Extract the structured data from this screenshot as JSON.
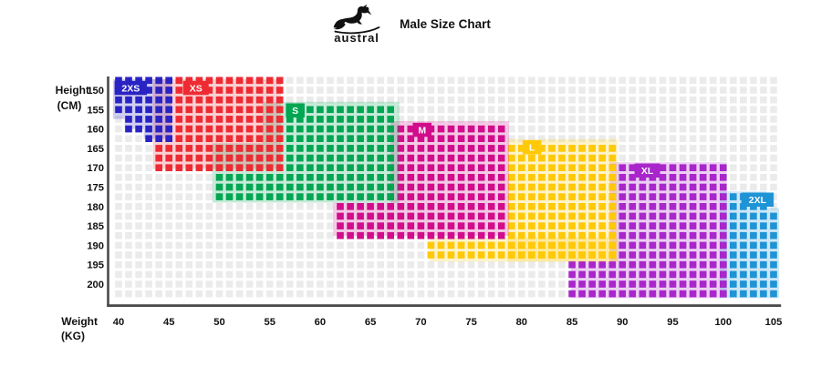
{
  "header": {
    "title": "Male Size Chart",
    "brand": "austral"
  },
  "axis": {
    "y_title": "Height",
    "y_unit": "(CM)",
    "x_title": "Weight",
    "x_unit": "(KG)",
    "y_ticks": [
      150,
      155,
      160,
      165,
      170,
      175,
      180,
      185,
      190,
      195,
      200
    ],
    "x_ticks": [
      40,
      45,
      50,
      55,
      60,
      65,
      70,
      75,
      80,
      85,
      90,
      95,
      100,
      105
    ]
  },
  "colors": {
    "background": "#ffffff",
    "grid_square": "#ebebeb",
    "axis_line": "#4a4a4a",
    "text": "#111111",
    "tint_opacity": 0.22
  },
  "chart_data": {
    "type": "heatmap",
    "title": "Male Size Chart",
    "xlabel": "Weight (KG)",
    "ylabel": "Height (CM)",
    "x_range": [
      40,
      105
    ],
    "y_range": [
      150,
      200
    ],
    "grid_step": {
      "kg": 1,
      "cm": 2.5
    },
    "grid_extent": {
      "kg": [
        40,
        105
      ],
      "cm": [
        147.5,
        202.5
      ]
    },
    "legend_position": "labels-inside-regions",
    "sizes": [
      {
        "name": "2XS",
        "color": "#2a23c3",
        "label_anchor": {
          "kg": 39.6,
          "cm": 147.6
        },
        "strips": [
          {
            "kg": [
              39.45,
              40.6
            ],
            "cm": [
              147.2,
              157.4
            ]
          },
          {
            "kg": [
              40.6,
              42.5
            ],
            "cm": [
              147.2,
              160.0
            ]
          },
          {
            "kg": [
              42.5,
              45.25
            ],
            "cm": [
              147.2,
              162.6
            ]
          }
        ]
      },
      {
        "name": "XS",
        "color": "#ee2b33",
        "label_anchor": {
          "kg": 46.4,
          "cm": 147.6
        },
        "strips": [
          {
            "kg": [
              43.4,
              56.15
            ],
            "cm": [
              147.2,
              170.3
            ]
          }
        ]
      },
      {
        "name": "S",
        "color": "#00a651",
        "label_anchor": {
          "kg": 56.6,
          "cm": 153.4
        },
        "strips": [
          {
            "kg": [
              54.3,
              67.85
            ],
            "cm": [
              153.0,
              163.7
            ]
          },
          {
            "kg": [
              49.3,
              67.85
            ],
            "cm": [
              163.7,
              179.0
            ]
          }
        ]
      },
      {
        "name": "M",
        "color": "#d10d8c",
        "label_anchor": {
          "kg": 69.2,
          "cm": 158.4
        },
        "strips": [
          {
            "kg": [
              67.0,
              78.75
            ],
            "cm": [
              158.0,
              179.0
            ]
          },
          {
            "kg": [
              61.3,
              78.75
            ],
            "cm": [
              179.0,
              187.6
            ]
          }
        ]
      },
      {
        "name": "L",
        "color": "#ffc907",
        "label_anchor": {
          "kg": 80.1,
          "cm": 162.9
        },
        "strips": [
          {
            "kg": [
              78.55,
              89.55
            ],
            "cm": [
              162.6,
              194.2
            ]
          },
          {
            "kg": [
              70.9,
              89.55
            ],
            "cm": [
              188.0,
              194.2
            ]
          }
        ]
      },
      {
        "name": "XL",
        "color": "#a826ca",
        "label_anchor": {
          "kg": 91.2,
          "cm": 168.9
        },
        "strips": [
          {
            "kg": [
              88.75,
              100.35
            ],
            "cm": [
              168.6,
              194.2
            ]
          },
          {
            "kg": [
              84.9,
              100.35
            ],
            "cm": [
              194.2,
              203.6
            ]
          }
        ]
      },
      {
        "name": "2XL",
        "color": "#1e93d6",
        "label_anchor": {
          "kg": 101.8,
          "cm": 176.4
        },
        "strips": [
          {
            "kg": [
              99.65,
              104.3
            ],
            "cm": [
              176.1,
              203.6
            ]
          },
          {
            "kg": [
              104.3,
              105.55
            ],
            "cm": [
              180.4,
              203.6
            ]
          }
        ]
      }
    ]
  }
}
